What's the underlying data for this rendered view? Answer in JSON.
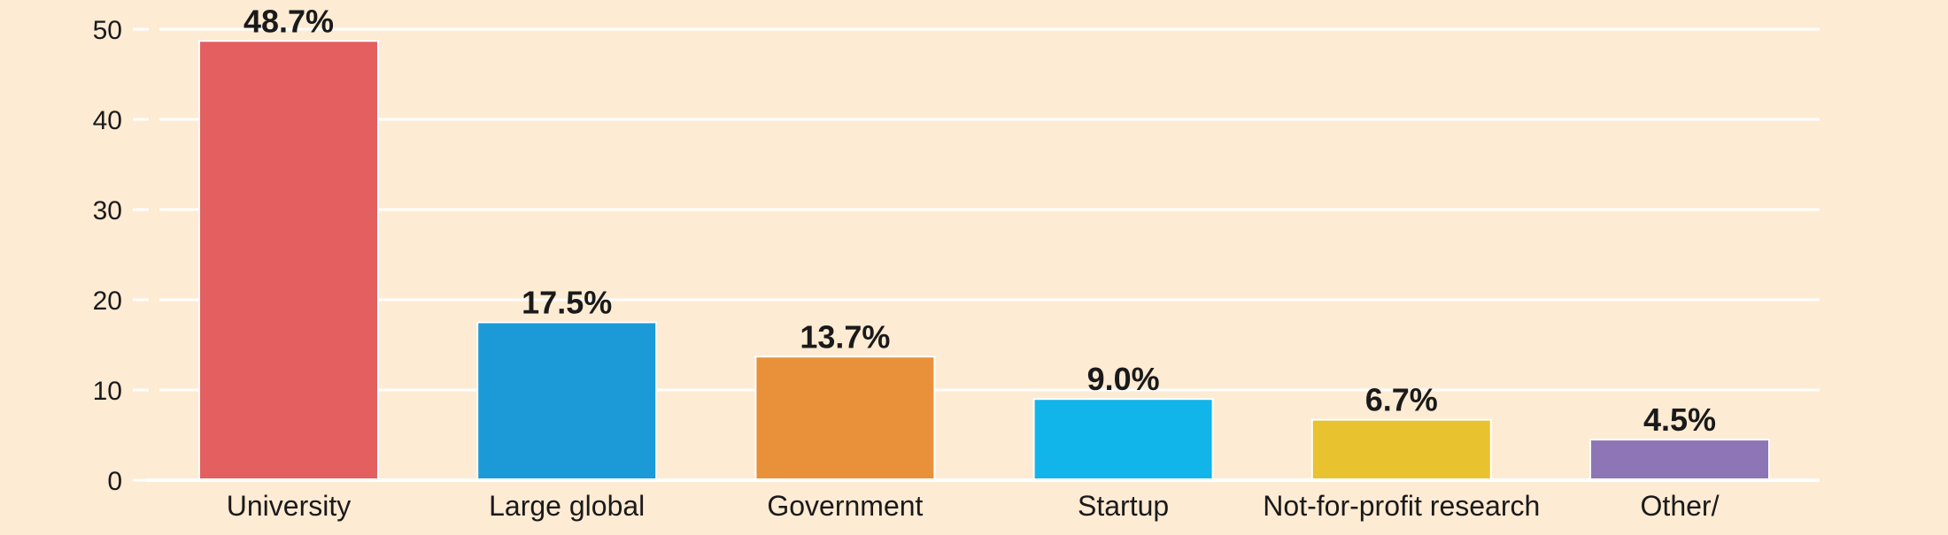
{
  "chart_data": {
    "type": "bar",
    "title": "",
    "xlabel": "",
    "ylabel": "",
    "ylim": [
      0,
      50
    ],
    "yticks": [
      0,
      10,
      20,
      30,
      40,
      50
    ],
    "grid": true,
    "categories": [
      "University",
      "Large global",
      "Government",
      "Startup",
      "Not-for-profit research",
      "Other/"
    ],
    "values": [
      48.7,
      17.5,
      13.7,
      9.0,
      6.7,
      4.5
    ],
    "value_labels": [
      "48.7%",
      "17.5%",
      "13.7%",
      "9.0%",
      "6.7%",
      "4.5%"
    ],
    "colors": [
      "#e35f60",
      "#1b9ad7",
      "#e8913a",
      "#12b5ea",
      "#e9c230",
      "#8e75b5"
    ],
    "background": "#fdebd3",
    "gridline_color": "#ffffff",
    "axis_color": "#ffffff"
  }
}
